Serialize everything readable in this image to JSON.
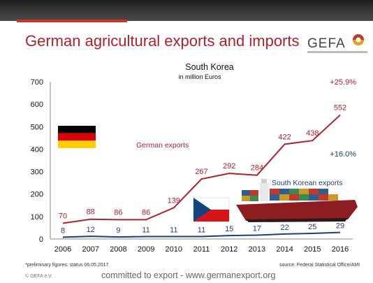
{
  "title": "German agricultural exports and imports",
  "logo": {
    "text": "GEFA"
  },
  "footnote": "*preliminary figures: status 06.05.2017",
  "source": "source: Federal Statistical Office/AMI",
  "copyright": "© GEFA e.V.",
  "footer": "committed to export - www.germanexport.org",
  "colors": {
    "title": "#b3202a",
    "exports": "#b3202a",
    "imports": "#1f3f77"
  },
  "icons": [
    "german-flag-icon",
    "czech-flag-icon",
    "container-ship-icon",
    "gefa-logo-icon"
  ],
  "chart_data": {
    "type": "line",
    "title": "South Korea",
    "subtitle": "in million Euros",
    "categories": [
      "2006",
      "2007",
      "2008",
      "2009",
      "2010",
      "2011",
      "2012",
      "2013",
      "2014",
      "2015",
      "2016"
    ],
    "series": [
      {
        "name": "German exports",
        "values": [
          70,
          88,
          86,
          86,
          139,
          267,
          292,
          284,
          422,
          438,
          552
        ],
        "color": "#b3202a"
      },
      {
        "name": "South Korean exports",
        "values": [
          8,
          12,
          9,
          11,
          11,
          11,
          15,
          17,
          22,
          25,
          29
        ],
        "color": "#1f3f77"
      }
    ],
    "ylim": [
      0,
      700
    ],
    "yticks": [
      "0",
      "100",
      "200",
      "300",
      "400",
      "500",
      "600",
      "700"
    ],
    "annotations": [
      {
        "text": "+25.9%",
        "series": "German exports"
      },
      {
        "text": "+16.0%",
        "series": "South Korean exports"
      }
    ],
    "grid": false,
    "legend": "inline labels"
  }
}
